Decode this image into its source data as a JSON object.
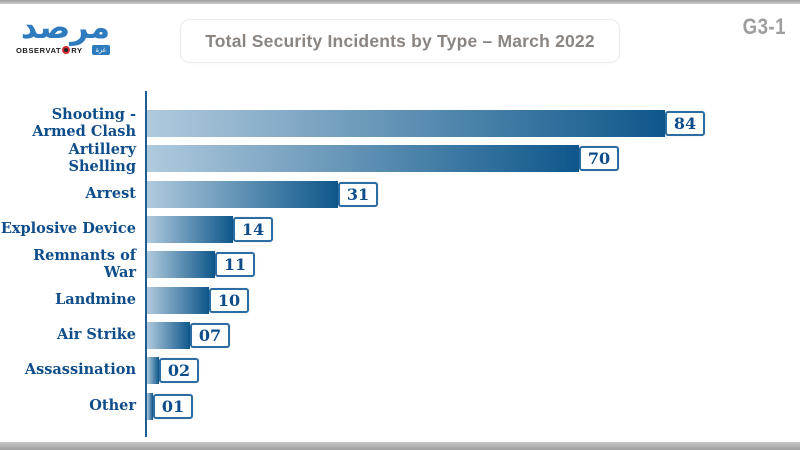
{
  "page": {
    "tag": "G3-1",
    "accent_color": "#0e578b",
    "bar_gradient_start": "#b0cadd",
    "bar_gradient_end": "#0e578b",
    "axis_color": "#1f5c92",
    "label_color": "#0e4d8a",
    "title_color": "#8b8582"
  },
  "logo": {
    "arabic": "مرصد",
    "wordmark_left": "OBSERVAT",
    "wordmark_right": "RY",
    "eye_icon": "red-eye-o-icon",
    "badge": "غزة"
  },
  "header": {
    "title": "Total Security Incidents by Type – March 2022"
  },
  "chart_data": {
    "type": "bar",
    "orientation": "horizontal",
    "title": "Total Security Incidents by Type – March 2022",
    "categories": [
      "Shooting - Armed Clash",
      "Artillery Shelling",
      "Arrest",
      "Explosive Device",
      "Remnants of War",
      "Landmine",
      "Air Strike",
      "Assassination",
      "Other"
    ],
    "values": [
      84,
      70,
      31,
      14,
      11,
      10,
      7,
      2,
      1
    ],
    "value_labels": [
      "84",
      "70",
      "31",
      "14",
      "11",
      "10",
      "07",
      "02",
      "01"
    ],
    "xlabel": "",
    "ylabel": "",
    "xlim": [
      0,
      84
    ],
    "grid": false,
    "legend": "none",
    "value_label_style": "boxed-at-bar-end"
  }
}
